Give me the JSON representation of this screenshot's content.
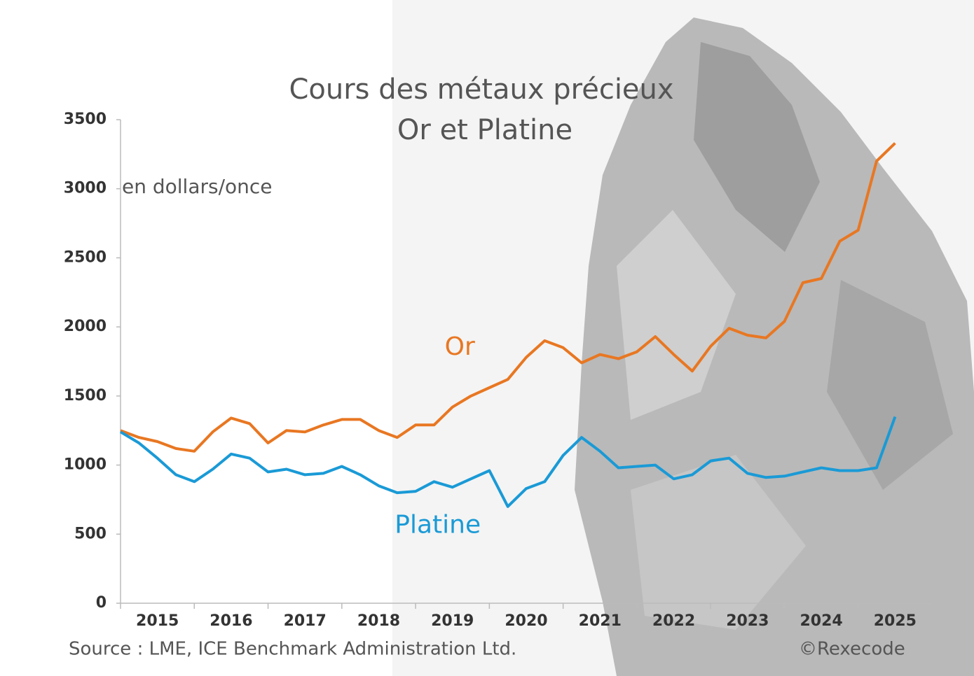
{
  "chart_data": {
    "type": "line",
    "title": "Cours des métaux précieux",
    "subtitle": "Or et Platine",
    "y_label": "en dollars/once",
    "source": "Source : LME, ICE Benchmark Administration Ltd.",
    "credit": "©Rexecode",
    "x": [
      2015,
      2015.25,
      2015.5,
      2015.75,
      2016,
      2016.25,
      2016.5,
      2016.75,
      2017,
      2017.25,
      2017.5,
      2017.75,
      2018,
      2018.25,
      2018.5,
      2018.75,
      2019,
      2019.25,
      2019.5,
      2019.75,
      2020,
      2020.25,
      2020.5,
      2020.75,
      2021,
      2021.25,
      2021.5,
      2021.75,
      2022,
      2022.25,
      2022.5,
      2022.75,
      2023,
      2023.25,
      2023.5,
      2023.75,
      2024,
      2024.25,
      2024.5,
      2024.75,
      2025,
      2025.25,
      2025.5
    ],
    "series": [
      {
        "name": "Or",
        "color": "#e87722",
        "values": [
          1250,
          1200,
          1170,
          1120,
          1100,
          1240,
          1340,
          1300,
          1160,
          1250,
          1240,
          1290,
          1330,
          1330,
          1250,
          1200,
          1290,
          1290,
          1420,
          1500,
          1560,
          1620,
          1780,
          1900,
          1850,
          1740,
          1800,
          1770,
          1820,
          1930,
          1800,
          1680,
          1860,
          1990,
          1940,
          1920,
          2040,
          2320,
          2350,
          2620,
          2700,
          3200,
          3330
        ]
      },
      {
        "name": "Platine",
        "color": "#1a9ad6",
        "values": [
          1240,
          1160,
          1050,
          930,
          880,
          970,
          1080,
          1050,
          950,
          970,
          930,
          940,
          990,
          930,
          850,
          800,
          810,
          880,
          840,
          900,
          960,
          700,
          830,
          880,
          1070,
          1200,
          1100,
          980,
          990,
          1000,
          900,
          930,
          1030,
          1050,
          940,
          910,
          920,
          950,
          980,
          960,
          960,
          980,
          1350
        ]
      }
    ],
    "xlim": [
      2015,
      2026
    ],
    "xticks": [
      2015,
      2016,
      2017,
      2018,
      2019,
      2020,
      2021,
      2022,
      2023,
      2024,
      2025
    ],
    "ylim": [
      0,
      3500
    ],
    "yticks": [
      0,
      500,
      1000,
      1500,
      2000,
      2500,
      3000,
      3500
    ],
    "grid": false
  }
}
